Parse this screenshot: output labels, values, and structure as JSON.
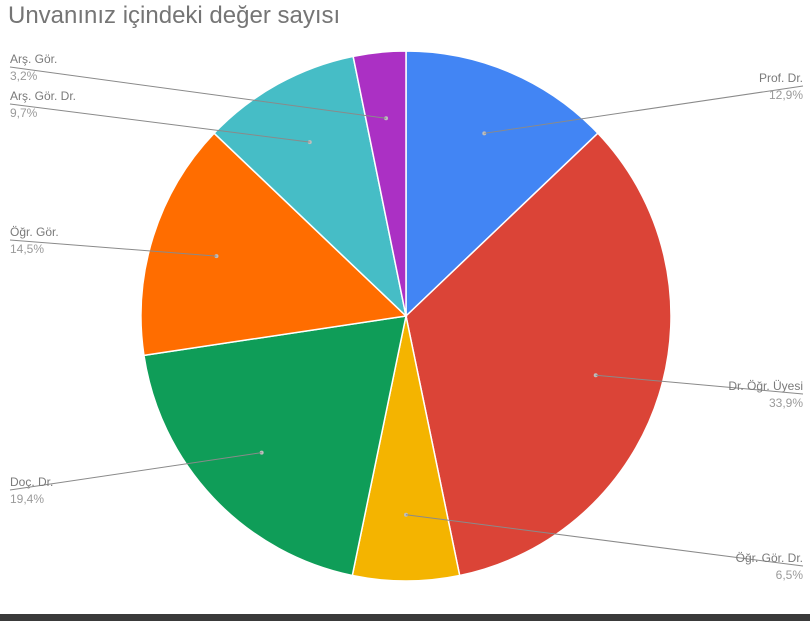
{
  "chart_data": {
    "type": "pie",
    "title": "Unvanınız içindeki değer sayısı",
    "slices": [
      {
        "label": "Prof. Dr.",
        "percent_label": "12,9%",
        "value": 12.9,
        "color": "#4285F4"
      },
      {
        "label": "Dr. Öğr. Üyesi",
        "percent_label": "33,9%",
        "value": 33.9,
        "color": "#DB4437"
      },
      {
        "label": "Öğr. Gör. Dr.",
        "percent_label": "6,5%",
        "value": 6.5,
        "color": "#F4B400"
      },
      {
        "label": "Doç. Dr.",
        "percent_label": "19,4%",
        "value": 19.4,
        "color": "#0F9D58"
      },
      {
        "label": "Öğr. Gör.",
        "percent_label": "14,5%",
        "value": 14.5,
        "color": "#FF6D00"
      },
      {
        "label": "Arş. Gör. Dr.",
        "percent_label": "9,7%",
        "value": 9.7,
        "color": "#46BDC6"
      },
      {
        "label": "Arş. Gör.",
        "percent_label": "3,2%",
        "value": 3.2,
        "color": "#AB30C4"
      }
    ]
  }
}
